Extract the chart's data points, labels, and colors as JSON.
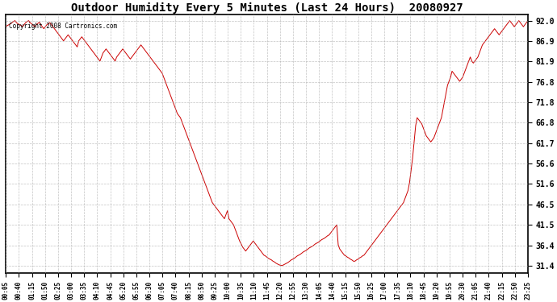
{
  "title": "Outdoor Humidity Every 5 Minutes (Last 24 Hours)  20080927",
  "copyright_text": "Copyright 2008 Cartronics.com",
  "line_color": "#cc0000",
  "background_color": "#ffffff",
  "grid_color": "#aaaaaa",
  "yticks": [
    31.4,
    36.4,
    41.5,
    46.5,
    51.6,
    56.6,
    61.7,
    66.8,
    71.8,
    76.8,
    81.9,
    86.9,
    92.0
  ],
  "ylim": [
    29.5,
    93.5
  ],
  "x_labels": [
    "00:05",
    "00:40",
    "01:15",
    "01:50",
    "02:25",
    "03:00",
    "03:35",
    "04:10",
    "04:45",
    "05:20",
    "05:55",
    "06:30",
    "07:05",
    "07:40",
    "08:15",
    "08:50",
    "09:25",
    "10:00",
    "10:35",
    "11:10",
    "11:45",
    "12:20",
    "12:55",
    "13:30",
    "14:05",
    "14:40",
    "15:15",
    "15:50",
    "16:25",
    "17:00",
    "17:35",
    "18:10",
    "18:45",
    "19:20",
    "19:55",
    "20:30",
    "21:05",
    "21:40",
    "22:15",
    "22:50",
    "23:25"
  ],
  "humidity_data": [
    90.5,
    90.8,
    91.0,
    91.2,
    91.5,
    91.8,
    92.0,
    91.5,
    91.2,
    91.0,
    90.8,
    90.5,
    91.0,
    91.5,
    91.8,
    92.0,
    91.5,
    91.2,
    90.8,
    90.5,
    91.0,
    91.3,
    91.6,
    91.0,
    90.5,
    90.0,
    90.5,
    91.0,
    91.2,
    91.5,
    91.0,
    90.5,
    90.0,
    89.5,
    89.0,
    88.5,
    88.0,
    87.5,
    87.0,
    87.5,
    88.0,
    88.5,
    88.0,
    87.5,
    87.0,
    86.5,
    86.0,
    85.5,
    87.0,
    87.5,
    88.0,
    87.5,
    87.0,
    86.5,
    86.0,
    85.5,
    85.0,
    84.5,
    84.0,
    83.5,
    83.0,
    82.5,
    82.0,
    83.0,
    84.0,
    84.5,
    85.0,
    84.5,
    84.0,
    83.5,
    83.0,
    82.5,
    82.0,
    83.0,
    83.5,
    84.0,
    84.5,
    85.0,
    84.5,
    84.0,
    83.5,
    83.0,
    82.5,
    83.0,
    83.5,
    84.0,
    84.5,
    85.0,
    85.5,
    86.0,
    85.5,
    85.0,
    84.5,
    84.0,
    83.5,
    83.0,
    82.5,
    82.0,
    81.5,
    81.0,
    80.5,
    80.0,
    79.5,
    79.0,
    78.0,
    77.0,
    76.0,
    75.0,
    74.0,
    73.0,
    72.0,
    71.0,
    70.0,
    69.0,
    68.5,
    68.0,
    67.0,
    66.0,
    65.0,
    64.0,
    63.0,
    62.0,
    61.0,
    60.0,
    59.0,
    58.0,
    57.0,
    56.0,
    55.0,
    54.0,
    53.0,
    52.0,
    51.0,
    50.0,
    49.0,
    48.0,
    47.0,
    46.5,
    46.0,
    45.5,
    45.0,
    44.5,
    44.0,
    43.5,
    43.0,
    44.0,
    45.0,
    43.0,
    42.5,
    42.0,
    41.5,
    40.5,
    39.5,
    38.5,
    37.5,
    36.8,
    36.0,
    35.5,
    35.0,
    35.5,
    36.0,
    36.5,
    37.0,
    37.5,
    37.0,
    36.5,
    36.0,
    35.5,
    35.0,
    34.5,
    34.0,
    33.8,
    33.5,
    33.2,
    33.0,
    32.8,
    32.5,
    32.3,
    32.0,
    31.8,
    31.6,
    31.5,
    31.4,
    31.6,
    31.8,
    32.0,
    32.2,
    32.5,
    32.8,
    33.0,
    33.2,
    33.5,
    33.8,
    34.0,
    34.2,
    34.5,
    34.8,
    35.0,
    35.2,
    35.5,
    35.8,
    36.0,
    36.2,
    36.5,
    36.8,
    37.0,
    37.2,
    37.5,
    37.8,
    38.0,
    38.2,
    38.5,
    38.8,
    39.0,
    39.5,
    40.0,
    40.5,
    41.0,
    41.5,
    36.5,
    35.5,
    35.0,
    34.5,
    34.0,
    33.8,
    33.5,
    33.3,
    33.0,
    32.8,
    32.5,
    32.5,
    32.8,
    33.0,
    33.3,
    33.5,
    33.8,
    34.0,
    34.5,
    35.0,
    35.5,
    36.0,
    36.5,
    37.0,
    37.5,
    38.0,
    38.5,
    39.0,
    39.5,
    40.0,
    40.5,
    41.0,
    41.5,
    42.0,
    42.5,
    43.0,
    43.5,
    44.0,
    44.5,
    45.0,
    45.5,
    46.0,
    46.5,
    47.0,
    48.0,
    49.0,
    50.0,
    52.0,
    55.0,
    58.0,
    62.0,
    66.0,
    68.0,
    67.5,
    67.0,
    66.5,
    65.5,
    64.5,
    63.5,
    63.0,
    62.5,
    62.0,
    62.5,
    63.0,
    64.0,
    65.0,
    66.0,
    67.0,
    68.0,
    70.0,
    72.0,
    74.0,
    76.0,
    77.0,
    78.0,
    79.5,
    79.0,
    78.5,
    78.0,
    77.5,
    77.0,
    77.5,
    78.0,
    79.0,
    80.0,
    81.0,
    82.0,
    83.0,
    82.0,
    81.5,
    82.0,
    82.5,
    83.0,
    84.0,
    85.0,
    86.0,
    86.5,
    87.0,
    87.5,
    88.0,
    88.5,
    89.0,
    89.5,
    90.0,
    89.5,
    89.0,
    88.5,
    89.0,
    89.5,
    90.0,
    90.5,
    91.0,
    91.5,
    92.0,
    91.5,
    91.0,
    90.5,
    91.0,
    91.5,
    92.0,
    91.5,
    91.0,
    90.5,
    91.0,
    91.5,
    92.0
  ]
}
